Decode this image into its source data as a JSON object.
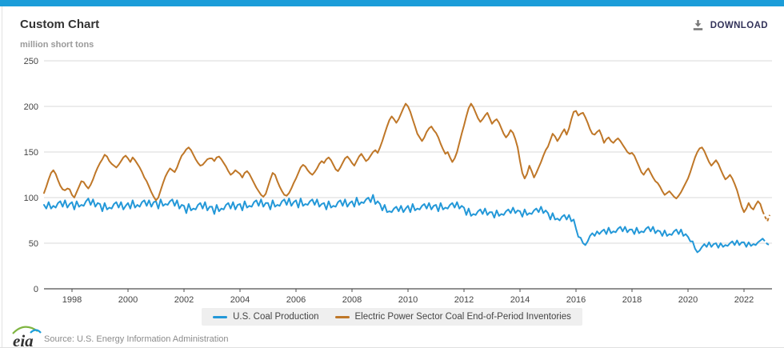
{
  "page": {
    "top_bar_color": "#1b9dd9"
  },
  "header": {
    "title": "Custom Chart",
    "download_label": "DOWNLOAD"
  },
  "footer": {
    "source": "Source: U.S. Energy Information Administration",
    "logo_text": "eia"
  },
  "chart_data": {
    "type": "line",
    "title": "Custom Chart",
    "ylabel": "million short tons",
    "xlabel": "",
    "x_start_year": 1997,
    "x_end_year": 2023,
    "points_per_year": 12,
    "ylim": [
      0,
      250
    ],
    "y_ticks": [
      0,
      50,
      100,
      150,
      200,
      250
    ],
    "x_ticks": [
      1998,
      2000,
      2002,
      2004,
      2006,
      2008,
      2010,
      2012,
      2014,
      2016,
      2018,
      2020,
      2022
    ],
    "grid": "horizontal",
    "legend_position": "bottom",
    "forecast_from_index": 308,
    "axis_color": "#4d4d4d",
    "grid_color": "#d9d9d9",
    "tick_label_color": "#444444",
    "series": [
      {
        "name": "U.S. Coal Production",
        "color": "#2398d8",
        "values": [
          92,
          88,
          95,
          88,
          91,
          89,
          94,
          96,
          90,
          97,
          89,
          93,
          95,
          87,
          96,
          90,
          92,
          91,
          96,
          99,
          92,
          98,
          90,
          94,
          93,
          85,
          94,
          87,
          89,
          88,
          93,
          95,
          89,
          95,
          87,
          91,
          94,
          88,
          97,
          89,
          92,
          90,
          95,
          97,
          91,
          97,
          90,
          95,
          96,
          88,
          98,
          91,
          93,
          92,
          96,
          98,
          91,
          97,
          88,
          92,
          91,
          83,
          93,
          86,
          88,
          87,
          92,
          94,
          88,
          95,
          86,
          90,
          90,
          82,
          92,
          85,
          88,
          87,
          92,
          94,
          88,
          95,
          87,
          92,
          93,
          86,
          96,
          89,
          91,
          90,
          95,
          97,
          91,
          98,
          90,
          94,
          94,
          87,
          97,
          90,
          92,
          91,
          96,
          98,
          92,
          99,
          91,
          95,
          97,
          89,
          99,
          91,
          93,
          92,
          96,
          98,
          92,
          98,
          90,
          93,
          94,
          87,
          96,
          89,
          91,
          90,
          95,
          97,
          91,
          98,
          90,
          94,
          96,
          90,
          100,
          92,
          95,
          94,
          98,
          100,
          95,
          103,
          93,
          96,
          93,
          86,
          92,
          84,
          85,
          84,
          88,
          90,
          85,
          91,
          84,
          88,
          91,
          84,
          93,
          86,
          88,
          87,
          91,
          93,
          88,
          94,
          87,
          91,
          92,
          85,
          94,
          87,
          89,
          88,
          92,
          94,
          89,
          95,
          88,
          91,
          89,
          81,
          88,
          80,
          82,
          81,
          85,
          87,
          82,
          88,
          81,
          84,
          84,
          78,
          86,
          80,
          82,
          81,
          85,
          87,
          83,
          89,
          83,
          86,
          85,
          79,
          87,
          81,
          83,
          82,
          86,
          88,
          84,
          90,
          83,
          86,
          83,
          76,
          83,
          76,
          77,
          75,
          79,
          81,
          76,
          81,
          74,
          76,
          66,
          57,
          56,
          50,
          48,
          52,
          58,
          61,
          58,
          63,
          60,
          63,
          65,
          60,
          67,
          61,
          63,
          62,
          66,
          68,
          63,
          68,
          62,
          65,
          65,
          60,
          67,
          61,
          63,
          62,
          66,
          68,
          63,
          68,
          61,
          64,
          63,
          58,
          64,
          58,
          60,
          59,
          63,
          65,
          60,
          65,
          58,
          60,
          57,
          52,
          52,
          44,
          40,
          42,
          46,
          49,
          46,
          51,
          46,
          49,
          50,
          45,
          50,
          46,
          48,
          47,
          50,
          52,
          48,
          53,
          48,
          51,
          51,
          46,
          51,
          47,
          49,
          48,
          51,
          53,
          55,
          52,
          49,
          48
        ]
      },
      {
        "name": "Electric Power Sector Coal End-of-Period Inventories",
        "color": "#bf7728",
        "values": [
          105,
          112,
          120,
          127,
          130,
          126,
          119,
          113,
          109,
          108,
          110,
          109,
          103,
          100,
          106,
          112,
          118,
          117,
          113,
          110,
          114,
          120,
          127,
          133,
          138,
          142,
          147,
          145,
          140,
          137,
          135,
          133,
          136,
          140,
          144,
          146,
          143,
          139,
          144,
          141,
          137,
          133,
          128,
          122,
          118,
          112,
          106,
          101,
          97,
          100,
          108,
          116,
          123,
          128,
          132,
          130,
          128,
          133,
          140,
          146,
          149,
          153,
          155,
          152,
          147,
          142,
          138,
          135,
          136,
          139,
          142,
          143,
          143,
          140,
          144,
          145,
          142,
          138,
          134,
          129,
          125,
          127,
          130,
          128,
          126,
          122,
          127,
          129,
          126,
          121,
          116,
          111,
          107,
          103,
          101,
          104,
          112,
          120,
          127,
          125,
          118,
          112,
          107,
          103,
          102,
          105,
          110,
          116,
          121,
          127,
          133,
          136,
          134,
          130,
          127,
          125,
          128,
          132,
          137,
          140,
          138,
          142,
          144,
          141,
          136,
          131,
          129,
          133,
          138,
          143,
          145,
          142,
          138,
          135,
          140,
          145,
          148,
          144,
          140,
          142,
          146,
          150,
          152,
          149,
          155,
          162,
          170,
          178,
          185,
          189,
          186,
          182,
          186,
          192,
          198,
          203,
          200,
          194,
          186,
          178,
          170,
          166,
          162,
          166,
          172,
          176,
          178,
          174,
          171,
          166,
          159,
          153,
          148,
          150,
          144,
          139,
          143,
          150,
          160,
          170,
          179,
          189,
          198,
          203,
          199,
          193,
          187,
          183,
          186,
          190,
          193,
          187,
          181,
          184,
          186,
          182,
          176,
          170,
          166,
          169,
          174,
          171,
          164,
          155,
          140,
          127,
          121,
          126,
          135,
          129,
          122,
          127,
          133,
          139,
          146,
          152,
          156,
          163,
          170,
          167,
          162,
          166,
          171,
          175,
          169,
          176,
          186,
          194,
          195,
          190,
          192,
          193,
          188,
          182,
          175,
          170,
          169,
          172,
          174,
          168,
          160,
          164,
          166,
          162,
          160,
          163,
          165,
          162,
          158,
          154,
          150,
          148,
          149,
          146,
          140,
          134,
          128,
          125,
          129,
          132,
          127,
          122,
          118,
          116,
          112,
          107,
          103,
          105,
          107,
          104,
          101,
          99,
          102,
          106,
          111,
          116,
          121,
          128,
          136,
          144,
          150,
          154,
          155,
          151,
          145,
          139,
          135,
          138,
          141,
          137,
          131,
          125,
          120,
          122,
          125,
          121,
          115,
          108,
          99,
          90,
          84,
          88,
          94,
          89,
          87,
          92,
          96,
          93,
          85,
          79,
          74,
          81
        ]
      }
    ]
  }
}
